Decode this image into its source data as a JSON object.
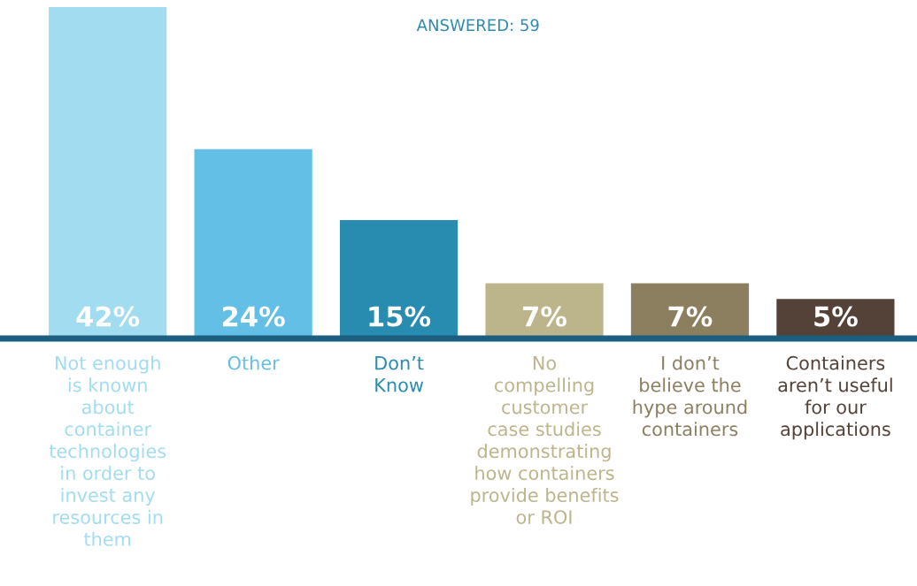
{
  "chart_data": {
    "type": "bar",
    "title": "ANSWERED: 59",
    "categories": [
      "Not enough\nis known\nabout\ncontainer\ntechnologies\nin order to\ninvest any\nresources in\nthem",
      "Other",
      "Don’t\nKnow",
      "No\ncompelling\ncustomer\ncase studies\ndemonstrating\nhow containers\nprovide benefits\nor ROI",
      "I don’t\nbelieve the\nhype around\ncontainers",
      "Containers\naren’t useful\nfor our\napplications"
    ],
    "values": [
      42,
      24,
      15,
      7,
      7,
      5
    ],
    "value_labels": [
      "42%",
      "24%",
      "15%",
      "7%",
      "7%",
      "5%"
    ],
    "colors": [
      "#a1dcf0",
      "#63bfe6",
      "#288bb0",
      "#bcb48a",
      "#8b7f60",
      "#544137"
    ],
    "grid": false,
    "legend": false
  }
}
